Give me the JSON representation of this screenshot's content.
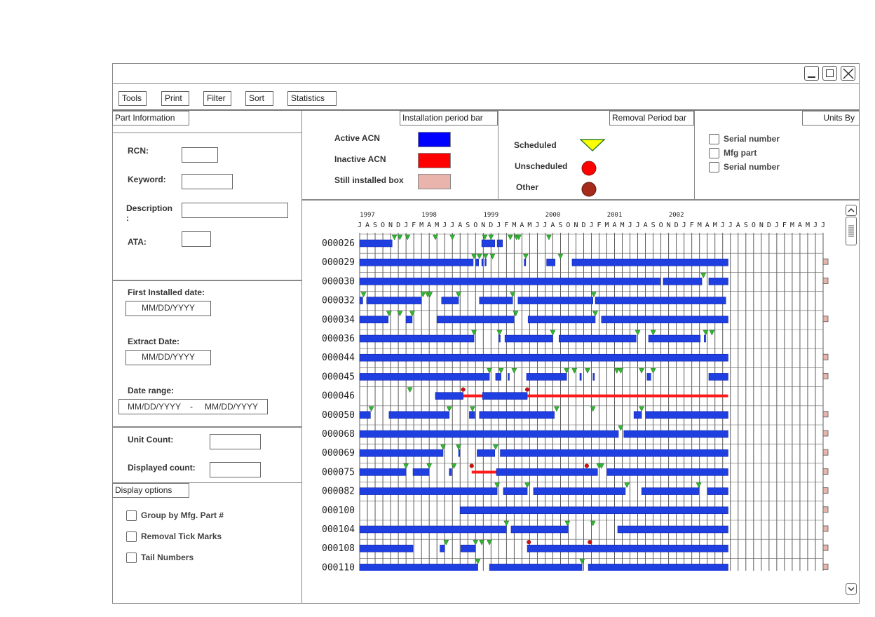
{
  "toolbar": {
    "tools": "Tools",
    "print": "Print",
    "filter": "Filter",
    "sort": "Sort",
    "statistics": "Statistics"
  },
  "part_info": {
    "title": "Part Information",
    "rcn_label": "RCN:",
    "keyword_label": "Keyword:",
    "description_label": "Description\n:",
    "ata_label": "ATA:",
    "first_installed_label": "First Installed date:",
    "first_installed_value": "MM/DD/YYYY",
    "extract_label": "Extract Date:",
    "extract_value": "MM/DD/YYYY",
    "date_range_label": "Date range:",
    "date_range_from": "MM/DD/YYYY",
    "date_range_sep": "-",
    "date_range_to": "MM/DD/YYYY",
    "unit_count_label": "Unit Count:",
    "displayed_count_label": "Displayed count:"
  },
  "display_options": {
    "title": "Display options",
    "items": [
      "Group by Mfg. Part #",
      "Removal Tick Marks",
      "Tail Numbers"
    ]
  },
  "legend_install": {
    "title": "Installation period bar",
    "items": [
      {
        "label": "Active ACN",
        "color": "#0000ff"
      },
      {
        "label": "Inactive ACN",
        "color": "#ff0000"
      },
      {
        "label": "Still installed box",
        "color": "#e8b4ac"
      }
    ]
  },
  "legend_removal": {
    "title": "Removal Period bar",
    "items": [
      {
        "label": "Scheduled",
        "color": "#ffff00",
        "icon": "triangle-icon"
      },
      {
        "label": "Unscheduled",
        "color": "#ff0000",
        "icon": "red-circle-icon"
      },
      {
        "label": "Other",
        "color": "#a52a1a",
        "icon": "dark-red-circle-icon"
      }
    ]
  },
  "units_by": {
    "title": "Units By",
    "items": [
      "Serial number",
      "Mfg part",
      "Serial number"
    ]
  },
  "chart_data": {
    "type": "gantt",
    "years": [
      {
        "label": "1997",
        "month_index": 1
      },
      {
        "label": "1998",
        "month_index": 9
      },
      {
        "label": "1999",
        "month_index": 17
      },
      {
        "label": "2000",
        "month_index": 25
      },
      {
        "label": "2001",
        "month_index": 33
      },
      {
        "label": "2002",
        "month_index": 41
      }
    ],
    "months": [
      "J",
      "A",
      "S",
      "O",
      "N",
      "D",
      "J",
      "F",
      "M",
      "A",
      "M",
      "J",
      "J",
      "A",
      "S",
      "O",
      "N",
      "D",
      "J",
      "F",
      "M",
      "A",
      "M",
      "J",
      "J",
      "A",
      "S",
      "O",
      "N",
      "D",
      "J",
      "F",
      "M",
      "A",
      "M",
      "J",
      "J",
      "A",
      "S",
      "O",
      "N",
      "D",
      "J",
      "F",
      "M",
      "A",
      "M",
      "J",
      "J",
      "A",
      "S",
      "O",
      "N",
      "D",
      "J",
      "F",
      "M",
      "A",
      "M",
      "J",
      "J"
    ],
    "rows": [
      {
        "label": "000026",
        "bars": [
          [
            0,
            4.2,
            "active"
          ],
          [
            15.8,
            17.5,
            "active"
          ],
          [
            17.8,
            18.5,
            "active"
          ]
        ],
        "still": false,
        "sched": [
          4.5,
          5.2,
          6.2,
          9.8,
          12,
          16.2,
          17,
          19.5,
          20.3,
          20.6,
          24.5
        ],
        "unsched": []
      },
      {
        "label": "000029",
        "bars": [
          [
            0,
            14.7,
            "active"
          ],
          [
            15,
            15.4,
            "active"
          ],
          [
            15.8,
            15.9,
            "active"
          ],
          [
            16.2,
            16.3,
            "active"
          ],
          [
            21.3,
            21.5,
            "active"
          ],
          [
            24.2,
            25.3,
            "active"
          ],
          [
            27.5,
            47.7,
            "active"
          ]
        ],
        "still": true,
        "sched": [
          14.8,
          15.5,
          16.3,
          17.2,
          21.5,
          26
        ],
        "unsched": []
      },
      {
        "label": "000030",
        "bars": [
          [
            0,
            38.9,
            "active"
          ],
          [
            39.3,
            44.3,
            "active"
          ],
          [
            45.2,
            47.7,
            "active"
          ]
        ],
        "still": true,
        "sched": [
          44.5
        ],
        "unsched": []
      },
      {
        "label": "000032",
        "bars": [
          [
            0,
            0.4,
            "active"
          ],
          [
            0.9,
            8,
            "active"
          ],
          [
            10.6,
            12.8,
            "active"
          ],
          [
            15.5,
            19.8,
            "active"
          ],
          [
            20.5,
            30.2,
            "active"
          ],
          [
            30.5,
            47.4,
            "active"
          ]
        ],
        "still": false,
        "sched": [
          0.5,
          8.2,
          8.8,
          9.1,
          12.8,
          19.8,
          30.3
        ],
        "unsched": []
      },
      {
        "label": "000034",
        "bars": [
          [
            0,
            3.7,
            "active"
          ],
          [
            6,
            6.8,
            "active"
          ],
          [
            10,
            20,
            "active"
          ],
          [
            21.8,
            30.5,
            "active"
          ],
          [
            31.3,
            47.7,
            "active"
          ]
        ],
        "still": true,
        "sched": [
          3.8,
          5.2,
          6.8,
          20.2,
          30.5
        ],
        "unsched": []
      },
      {
        "label": "000036",
        "bars": [
          [
            0,
            14.8,
            "active"
          ],
          [
            18,
            18.2,
            "active"
          ],
          [
            18.8,
            25,
            "active"
          ],
          [
            25.8,
            35.8,
            "active"
          ],
          [
            37.4,
            44.1,
            "active"
          ],
          [
            44.6,
            44.8,
            "active"
          ]
        ],
        "still": false,
        "sched": [
          14.8,
          18.1,
          25,
          36,
          38,
          44.8,
          45.6
        ],
        "unsched": []
      },
      {
        "label": "000044",
        "bars": [
          [
            0,
            47.7,
            "active"
          ]
        ],
        "still": true,
        "sched": [],
        "unsched": []
      },
      {
        "label": "000045",
        "bars": [
          [
            0,
            16.8,
            "active"
          ],
          [
            17.6,
            18.3,
            "active"
          ],
          [
            19.2,
            19.3,
            "active"
          ],
          [
            21.6,
            26.8,
            "active"
          ],
          [
            28.5,
            28.7,
            "active"
          ],
          [
            30.2,
            30.4,
            "active"
          ],
          [
            37.2,
            37.7,
            "active"
          ],
          [
            45.2,
            47.7,
            "active"
          ]
        ],
        "still": true,
        "sched": [
          16.8,
          18.3,
          20,
          26.8,
          27.8,
          29.5,
          33.3,
          33.8,
          36.5,
          38
        ],
        "unsched": []
      },
      {
        "label": "000046",
        "bars": [
          [
            9.8,
            13.4,
            "active"
          ],
          [
            13.4,
            15.9,
            "inactive"
          ],
          [
            15.9,
            21.7,
            "active"
          ],
          [
            21.7,
            47.7,
            "inactive"
          ]
        ],
        "still": false,
        "sched": [
          6.5
        ],
        "unsched": [
          13.4,
          21.7
        ]
      },
      {
        "label": "000050",
        "bars": [
          [
            0,
            1.4,
            "active"
          ],
          [
            3.8,
            11.6,
            "active"
          ],
          [
            14.2,
            14.9,
            "active"
          ],
          [
            15.5,
            25.2,
            "active"
          ],
          [
            35.5,
            36.5,
            "active"
          ],
          [
            37,
            47.7,
            "active"
          ]
        ],
        "still": true,
        "sched": [
          1.5,
          11.6,
          14.6,
          25.5,
          30.2,
          36.5
        ],
        "unsched": []
      },
      {
        "label": "000068",
        "bars": [
          [
            0,
            33.5,
            "active"
          ],
          [
            34.2,
            47.7,
            "active"
          ]
        ],
        "still": true,
        "sched": [
          33.8
        ],
        "unsched": []
      },
      {
        "label": "000069",
        "bars": [
          [
            0,
            10.8,
            "active"
          ],
          [
            12.8,
            12.9,
            "active"
          ],
          [
            15.2,
            17.5,
            "active"
          ],
          [
            18.2,
            47.7,
            "active"
          ]
        ],
        "still": true,
        "sched": [
          10.8,
          12.8,
          17.6
        ],
        "unsched": []
      },
      {
        "label": "000075",
        "bars": [
          [
            0,
            6,
            "active"
          ],
          [
            6.9,
            9,
            "active"
          ],
          [
            11.6,
            11.9,
            "active"
          ],
          [
            14.5,
            17.7,
            "inactive"
          ],
          [
            17.7,
            30.8,
            "active"
          ],
          [
            32,
            47.7,
            "active"
          ]
        ],
        "still": true,
        "sched": [
          6,
          9,
          12.2,
          31,
          31.3
        ],
        "unsched": [
          14.5,
          29.4
        ]
      },
      {
        "label": "000082",
        "bars": [
          [
            0,
            17.8,
            "active"
          ],
          [
            18.6,
            21.7,
            "active"
          ],
          [
            22.5,
            34.4,
            "active"
          ],
          [
            36.5,
            43.9,
            "active"
          ],
          [
            45,
            47.7,
            "active"
          ]
        ],
        "still": true,
        "sched": [
          17.8,
          21.7,
          34.6,
          43.9
        ],
        "unsched": []
      },
      {
        "label": "000100",
        "bars": [
          [
            13,
            47.7,
            "active"
          ]
        ],
        "still": true,
        "sched": [],
        "unsched": []
      },
      {
        "label": "000104",
        "bars": [
          [
            0,
            19,
            "active"
          ],
          [
            19.6,
            27,
            "active"
          ],
          [
            33.4,
            47.7,
            "active"
          ]
        ],
        "still": true,
        "sched": [
          19,
          26.9,
          30.2
        ],
        "unsched": []
      },
      {
        "label": "000108",
        "bars": [
          [
            0,
            6.9,
            "active"
          ],
          [
            10.4,
            11,
            "active"
          ],
          [
            13.1,
            15,
            "active"
          ],
          [
            21.7,
            47.7,
            "active"
          ]
        ],
        "still": true,
        "sched": [
          11.2,
          15,
          15.8,
          16.8
        ],
        "unsched": [
          21.9,
          29.8
        ]
      },
      {
        "label": "000110",
        "bars": [
          [
            0,
            15.3,
            "active"
          ],
          [
            16.8,
            28.8,
            "active"
          ],
          [
            29.6,
            47.7,
            "active"
          ]
        ],
        "still": true,
        "sched": [
          15.3,
          28.8
        ],
        "unsched": []
      }
    ]
  }
}
